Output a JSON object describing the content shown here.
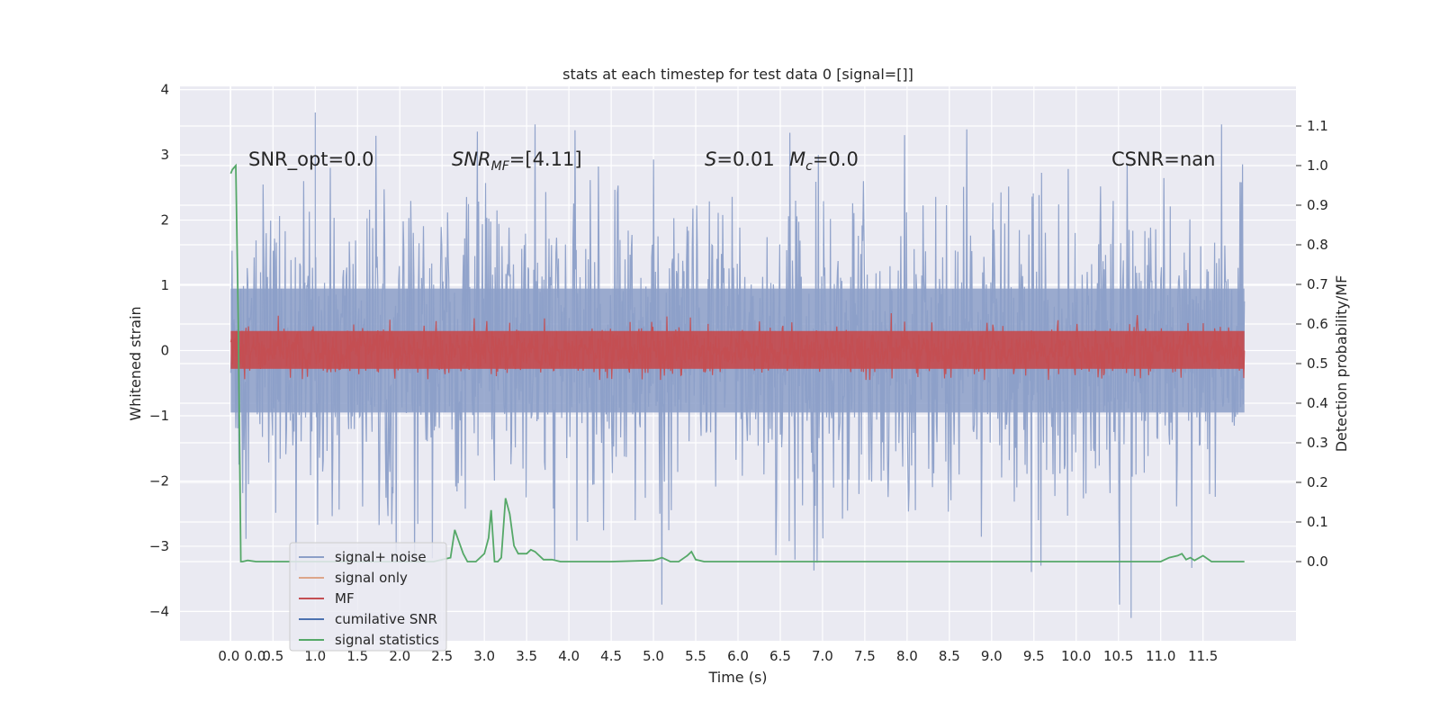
{
  "chart_data": {
    "type": "line",
    "title": "stats at each timestep for test data 0 [signal=[]]",
    "xlabel": "Time (s)",
    "ylabel": "Whitened strain",
    "y2label": "Detection probability/MF",
    "xlim": [
      -0.6,
      12.6
    ],
    "ylim": [
      -4.45,
      4.05
    ],
    "y2lim": [
      -0.2,
      1.2
    ],
    "x_range": [
      0.0,
      11.99
    ],
    "xticks": [
      "0.0",
      "0.0",
      "0.5",
      "1.0",
      "1.5",
      "2.0",
      "2.5",
      "3.0",
      "3.5",
      "4.0",
      "4.5",
      "5.0",
      "5.5",
      "6.0",
      "6.5",
      "7.0",
      "7.5",
      "8.0",
      "8.5",
      "9.0",
      "9.5",
      "10.0",
      "10.5",
      "11.0",
      "11.5"
    ],
    "xtick_values": [
      0.0,
      0.0,
      0.5,
      1.0,
      1.5,
      2.0,
      2.5,
      3.0,
      3.5,
      4.0,
      4.5,
      5.0,
      5.5,
      6.0,
      6.5,
      7.0,
      7.5,
      8.0,
      8.5,
      9.0,
      9.5,
      10.0,
      10.5,
      11.0,
      11.5
    ],
    "yticks": [
      -4,
      -3,
      -2,
      -1,
      0,
      1,
      2,
      3,
      4
    ],
    "ytick_labels": [
      "−4",
      "−3",
      "−2",
      "−1",
      "0",
      "1",
      "2",
      "3",
      "4"
    ],
    "y2ticks": [
      0.0,
      0.1,
      0.2,
      0.3,
      0.4,
      0.5,
      0.6,
      0.7,
      0.8,
      0.9,
      1.0,
      1.1
    ],
    "y2tick_labels": [
      "0.0",
      "0.1",
      "0.2",
      "0.3",
      "0.4",
      "0.5",
      "0.6",
      "0.7",
      "0.8",
      "0.9",
      "1.0",
      "1.1"
    ],
    "grid": true,
    "annotations": [
      {
        "id": "snr-opt",
        "text": "SNR_opt=0.0"
      },
      {
        "id": "snr-mf",
        "text": "=[4.11]",
        "math": "SNR",
        "sub": "MF"
      },
      {
        "id": "s-stat",
        "text": "=0.01",
        "math": "S"
      },
      {
        "id": "mc-stat",
        "text": "=0.0",
        "math": "M",
        "sub": "c"
      },
      {
        "id": "csnr",
        "text": "CSNR=nan"
      }
    ],
    "legend": {
      "placement": "lower-left",
      "entries": [
        {
          "label": "signal+ noise",
          "color": "#8c9fc8"
        },
        {
          "label": "signal only",
          "color": "#dda68a"
        },
        {
          "label": "MF",
          "color": "#c44e52"
        },
        {
          "label": "cumilative SNR",
          "color": "#4c72b0"
        },
        {
          "label": "signal statistics",
          "color": "#55a868"
        }
      ]
    },
    "series": [
      {
        "name": "signal+ noise",
        "kind": "noise",
        "axis": "left",
        "color": "#8c9fc8",
        "envelope": 2.0,
        "peak_max": 3.65,
        "peak_min": -4.1
      },
      {
        "name": "MF",
        "kind": "noise",
        "axis": "left",
        "color": "#c44e52",
        "envelope": 0.45,
        "peak_max": 1.0,
        "peak_min": -0.45
      },
      {
        "name": "signal statistics",
        "kind": "line",
        "axis": "right",
        "color": "#55a868",
        "x": [
          0.0,
          0.02,
          0.06,
          0.09,
          0.12,
          0.14,
          0.2,
          0.3,
          0.5,
          1.0,
          1.5,
          2.0,
          2.4,
          2.6,
          2.65,
          2.7,
          2.75,
          2.8,
          2.9,
          3.0,
          3.05,
          3.08,
          3.12,
          3.16,
          3.2,
          3.25,
          3.3,
          3.35,
          3.4,
          3.5,
          3.55,
          3.6,
          3.7,
          3.8,
          3.9,
          4.0,
          4.5,
          5.0,
          5.1,
          5.2,
          5.3,
          5.4,
          5.45,
          5.5,
          5.6,
          6.0,
          6.5,
          7.0,
          8.0,
          8.5,
          9.0,
          10.0,
          11.0,
          11.1,
          11.2,
          11.25,
          11.3,
          11.35,
          11.4,
          11.5,
          11.6,
          11.8,
          11.99
        ],
        "y": [
          0.98,
          0.99,
          1.0,
          0.6,
          0.0,
          0.0,
          0.003,
          0.0,
          0.0,
          0.0,
          0.0,
          0.0,
          0.0,
          0.01,
          0.08,
          0.05,
          0.02,
          0.0,
          0.0,
          0.02,
          0.06,
          0.13,
          0.0,
          0.0,
          0.01,
          0.16,
          0.12,
          0.04,
          0.02,
          0.02,
          0.03,
          0.025,
          0.005,
          0.005,
          0.0,
          0.0,
          0.0,
          0.003,
          0.01,
          0.0,
          0.0,
          0.015,
          0.025,
          0.005,
          0.0,
          0.0,
          0.0,
          0.0,
          0.0,
          0.0,
          0.0,
          0.0,
          0.0,
          0.01,
          0.015,
          0.02,
          0.005,
          0.01,
          0.003,
          0.015,
          0.0,
          0.0,
          0.0
        ]
      }
    ]
  }
}
